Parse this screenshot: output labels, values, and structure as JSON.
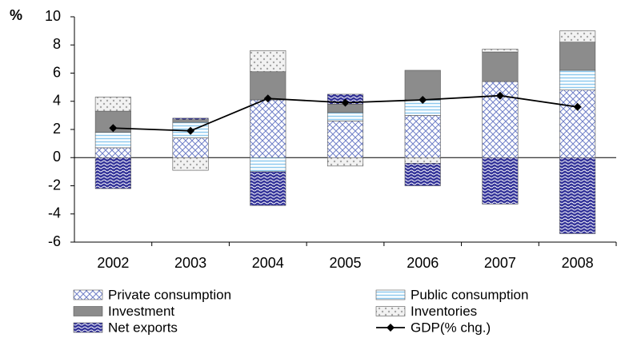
{
  "chart_data": {
    "type": "bar",
    "stacked": true,
    "y_label": "%",
    "categories": [
      "2002",
      "2003",
      "2004",
      "2005",
      "2006",
      "2007",
      "2008"
    ],
    "ylim": [
      -6,
      10
    ],
    "yticks": [
      -6,
      -4,
      -2,
      0,
      2,
      4,
      6,
      8,
      10
    ],
    "series": [
      {
        "name": "Private consumption",
        "color": "#6f7fc7",
        "pattern": "crosshatch",
        "values": [
          0.7,
          1.4,
          4.1,
          2.6,
          3.0,
          5.4,
          4.8
        ]
      },
      {
        "name": "Public consumption",
        "color": "#8ec9ef",
        "pattern": "hlines",
        "values": [
          1.1,
          1.1,
          -1.0,
          0.6,
          1.1,
          0,
          1.4
        ]
      },
      {
        "name": "Investment",
        "color": "#8c8c8c",
        "pattern": "solid",
        "values": [
          1.5,
          0.2,
          2.0,
          0.6,
          2.1,
          2.1,
          2.0
        ]
      },
      {
        "name": "Inventories",
        "color": "#a6a6a6",
        "pattern": "dots",
        "values": [
          1.0,
          -0.9,
          1.5,
          -0.6,
          -0.4,
          0.2,
          0.8
        ]
      },
      {
        "name": "Net exports",
        "color": "#333399",
        "pattern": "waves",
        "values": [
          -2.2,
          0.1,
          -2.4,
          0.7,
          -1.6,
          -3.3,
          -5.4
        ]
      },
      {
        "name": "GDP(% chg.)",
        "color": "#000000",
        "type": "line",
        "values": [
          2.1,
          1.9,
          4.2,
          3.9,
          4.1,
          4.4,
          3.6
        ]
      }
    ]
  }
}
